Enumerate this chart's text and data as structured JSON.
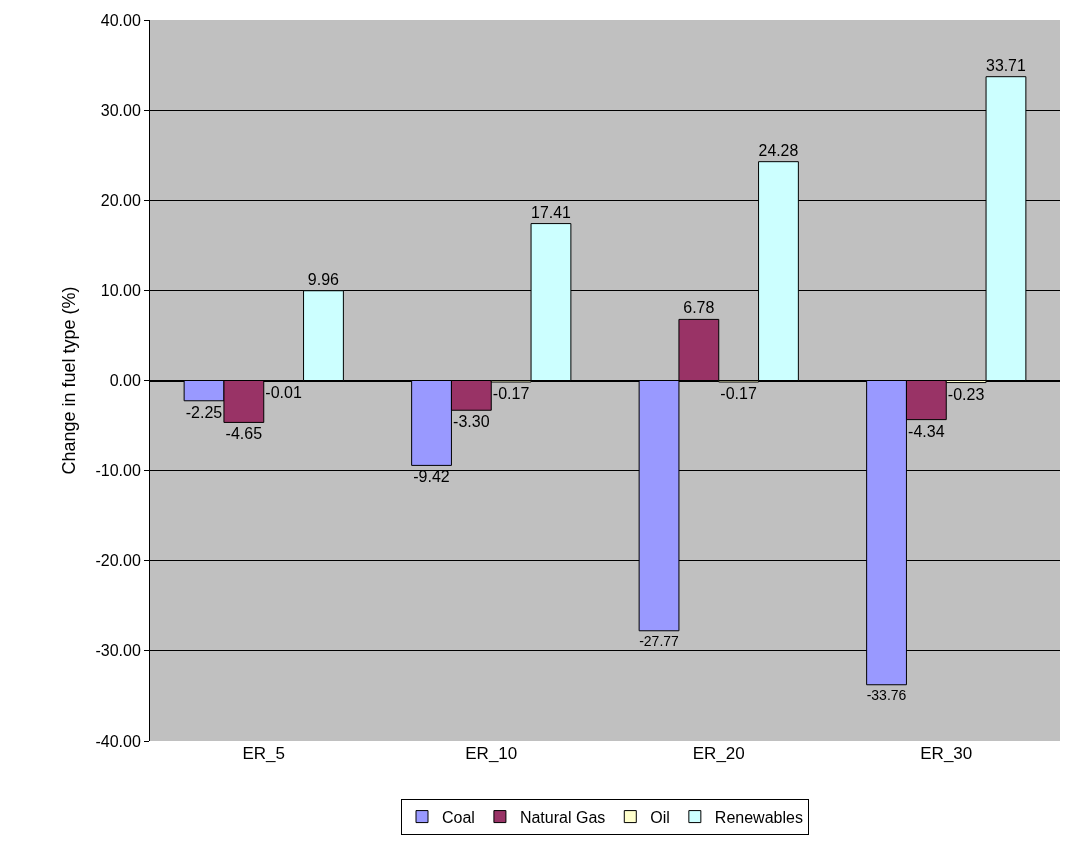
{
  "chart_data": {
    "type": "bar",
    "ylabel": "Change in fuel type (%)",
    "categories": [
      "ER_5",
      "ER_10",
      "ER_20",
      "ER_30"
    ],
    "series": [
      {
        "name": "Coal",
        "color": "#9999ff",
        "values": [
          -2.25,
          -9.42,
          -27.77,
          -33.76
        ],
        "value_labels": [
          "-2.25",
          "-9.42",
          "-27.77",
          "-33.76"
        ]
      },
      {
        "name": "Natural Gas",
        "color": "#993366",
        "values": [
          -4.65,
          -3.3,
          6.78,
          -4.34
        ],
        "value_labels": [
          "-4.65",
          "-3.30",
          "6.78",
          "-4.34"
        ]
      },
      {
        "name": "Oil",
        "color": "#ffffcc",
        "values": [
          -0.01,
          -0.17,
          -0.17,
          -0.23
        ],
        "value_labels": [
          "-0.01",
          "-0.17",
          "-0.17",
          "-0.23"
        ]
      },
      {
        "name": "Renewables",
        "color": "#ccffff",
        "values": [
          9.96,
          17.41,
          24.28,
          33.71
        ],
        "value_labels": [
          "9.96",
          "17.41",
          "24.28",
          "33.71"
        ]
      }
    ],
    "ylim": [
      -40,
      40
    ],
    "yticks": [
      {
        "value": -40,
        "label": "-40.00"
      },
      {
        "value": -30,
        "label": "-30.00"
      },
      {
        "value": -20,
        "label": "-20.00"
      },
      {
        "value": -10,
        "label": "-10.00"
      },
      {
        "value": 0,
        "label": "0.00"
      },
      {
        "value": 10,
        "label": "10.00"
      },
      {
        "value": 20,
        "label": "20.00"
      },
      {
        "value": 30,
        "label": "30.00"
      },
      {
        "value": 40,
        "label": "40.00"
      }
    ],
    "grid": "y",
    "legend": "bottom"
  }
}
